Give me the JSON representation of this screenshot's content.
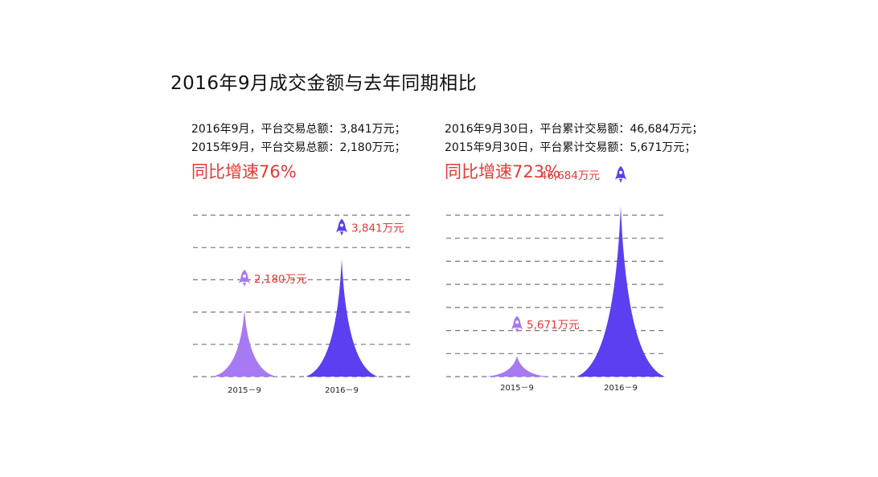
{
  "title": "2016年9月成交金额与去年同期相比",
  "colors": {
    "current": "#5b3ff0",
    "previous": "#a779f3",
    "accent": "#e53935",
    "grid": "#777777"
  },
  "left_panel": {
    "line1": "2016年9月，平台交易总额：3,841万元；",
    "line2": "2015年9月，平台交易总额：2,180万元；",
    "growth": "同比增速76%"
  },
  "right_panel": {
    "line1": "2016年9月30日，平台累计交易额：46,684万元；",
    "line2": "2015年9月30日，平台累计交易额：5,671万元；",
    "growth": "同比增速723%"
  },
  "chart_data": [
    {
      "type": "bar",
      "categories": [
        "2015－9",
        "2016－9"
      ],
      "values": [
        2180,
        3841
      ],
      "data_labels": [
        "2,180万元",
        "3,841万元"
      ],
      "icon": "rocket-icon",
      "grid": true,
      "ylim": [
        0,
        8000
      ]
    },
    {
      "type": "bar",
      "categories": [
        "2015－9",
        "2016－9"
      ],
      "values": [
        5671,
        46684
      ],
      "data_labels": [
        "5,671万元",
        "46,684万元"
      ],
      "icon": "rocket-icon",
      "grid": true,
      "ylim": [
        0,
        55000
      ]
    }
  ]
}
